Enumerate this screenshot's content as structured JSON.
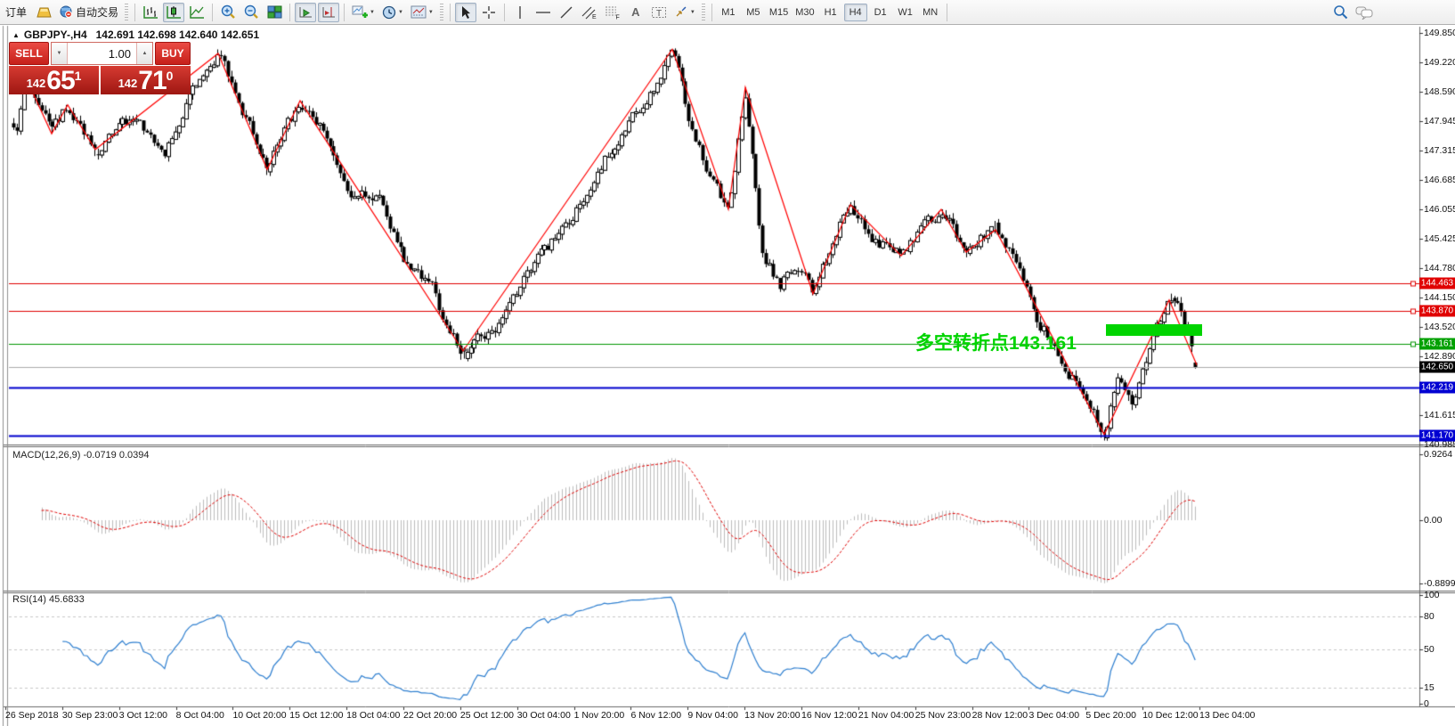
{
  "toolbar": {
    "order_label": "订单",
    "autotrade_label": "自动交易",
    "timeframes": [
      {
        "label": "M1",
        "active": false
      },
      {
        "label": "M5",
        "active": false
      },
      {
        "label": "M15",
        "active": false
      },
      {
        "label": "M30",
        "active": false
      },
      {
        "label": "H1",
        "active": false
      },
      {
        "label": "H4",
        "active": true
      },
      {
        "label": "D1",
        "active": false
      },
      {
        "label": "W1",
        "active": false
      },
      {
        "label": "MN",
        "active": false
      }
    ],
    "fibo_tag": "F",
    "channel_tag": "E",
    "text_tool": "A",
    "label_tool": "T"
  },
  "quote_panel": {
    "title_symbol": "GBPJPY-,H4",
    "title_ohlc": "142.691 142.698 142.640 142.651",
    "sell_label": "SELL",
    "buy_label": "BUY",
    "volume": "1.00",
    "sell_price_big": "142",
    "sell_price_main": "65",
    "sell_price_sup": "1",
    "buy_price_big": "142",
    "buy_price_main": "71",
    "buy_price_sup": "0"
  },
  "chart_data": {
    "type": "candlestick",
    "symbol": "GBPJPY-",
    "timeframe": "H4",
    "quote": {
      "open": 142.691,
      "high": 142.698,
      "low": 142.64,
      "close": 142.651
    },
    "price_axis": {
      "ticks": [
        149.85,
        149.22,
        148.59,
        147.945,
        147.315,
        146.685,
        146.055,
        145.425,
        144.78,
        144.15,
        143.52,
        142.89,
        141.615,
        140.985
      ]
    },
    "levels": [
      {
        "price": 144.463,
        "label": "144.463",
        "line_color": "#e00000",
        "width": 1,
        "badge_bg": "#e00000",
        "handle": true
      },
      {
        "price": 143.87,
        "label": "143.870",
        "line_color": "#e00000",
        "width": 1,
        "badge_bg": "#e00000",
        "handle": true
      },
      {
        "price": 143.161,
        "label": "143.161",
        "line_color": "#009600",
        "width": 1,
        "badge_bg": "#00a000",
        "handle": true
      },
      {
        "price": 142.65,
        "label": "142.650",
        "line_color": "#ababab",
        "width": 1,
        "badge_bg": "#000000",
        "handle": false
      },
      {
        "price": 142.219,
        "label": "142.219",
        "line_color": "#0000cd",
        "width": 2,
        "badge_bg": "#0000d2",
        "handle": false
      },
      {
        "price": 141.17,
        "label": "141.170",
        "line_color": "#0000cd",
        "width": 2,
        "badge_bg": "#0000d2",
        "handle": false
      }
    ],
    "time_labels": [
      "26 Sep 2018",
      "30 Sep 23:00",
      "3 Oct 12:00",
      "8 Oct 04:00",
      "10 Oct 20:00",
      "15 Oct 12:00",
      "18 Oct 04:00",
      "22 Oct 20:00",
      "25 Oct 12:00",
      "30 Oct 04:00",
      "1 Nov 20:00",
      "6 Nov 12:00",
      "9 Nov 04:00",
      "13 Nov 20:00",
      "16 Nov 12:00",
      "21 Nov 04:00",
      "25 Nov 23:00",
      "28 Nov 12:00",
      "3 Dec 04:00",
      "5 Dec 20:00",
      "10 Dec 12:00",
      "13 Dec 04:00"
    ],
    "zigzag_pivots": [
      [
        30,
        148.85
      ],
      [
        58,
        147.68
      ],
      [
        76,
        148.3
      ],
      [
        107,
        147.34
      ],
      [
        245,
        149.41
      ],
      [
        300,
        146.91
      ],
      [
        337,
        148.39
      ],
      [
        520,
        143.0
      ],
      [
        755,
        149.5
      ],
      [
        818,
        146.05
      ],
      [
        837,
        148.68
      ],
      [
        913,
        144.23
      ],
      [
        955,
        146.15
      ],
      [
        1012,
        145.05
      ],
      [
        1057,
        146.05
      ],
      [
        1085,
        145.13
      ],
      [
        1118,
        145.61
      ],
      [
        1240,
        141.2
      ],
      [
        1313,
        144.1
      ],
      [
        1344,
        142.7
      ]
    ],
    "path_anchors": [
      [
        20,
        147.9
      ],
      [
        30,
        148.85
      ],
      [
        58,
        147.68
      ],
      [
        76,
        148.3
      ],
      [
        107,
        147.34
      ],
      [
        150,
        148.1
      ],
      [
        185,
        147.3
      ],
      [
        210,
        148.4
      ],
      [
        245,
        149.41
      ],
      [
        300,
        146.91
      ],
      [
        337,
        148.39
      ],
      [
        365,
        147.6
      ],
      [
        395,
        146.3
      ],
      [
        425,
        146.45
      ],
      [
        455,
        144.9
      ],
      [
        485,
        144.35
      ],
      [
        505,
        143.3
      ],
      [
        520,
        143.0
      ],
      [
        560,
        143.55
      ],
      [
        600,
        144.9
      ],
      [
        640,
        145.8
      ],
      [
        680,
        147.2
      ],
      [
        700,
        147.6
      ],
      [
        720,
        148.3
      ],
      [
        740,
        148.9
      ],
      [
        755,
        149.5
      ],
      [
        775,
        147.9
      ],
      [
        795,
        146.9
      ],
      [
        805,
        146.5
      ],
      [
        818,
        146.05
      ],
      [
        825,
        147.0
      ],
      [
        830,
        147.9
      ],
      [
        837,
        148.68
      ],
      [
        855,
        145.2
      ],
      [
        875,
        144.4
      ],
      [
        895,
        144.9
      ],
      [
        913,
        144.23
      ],
      [
        934,
        145.3
      ],
      [
        955,
        146.15
      ],
      [
        985,
        145.3
      ],
      [
        1012,
        145.05
      ],
      [
        1035,
        145.6
      ],
      [
        1057,
        146.05
      ],
      [
        1085,
        145.13
      ],
      [
        1100,
        145.4
      ],
      [
        1118,
        145.61
      ],
      [
        1150,
        144.5
      ],
      [
        1165,
        143.6
      ],
      [
        1180,
        143.3
      ],
      [
        1200,
        142.6
      ],
      [
        1220,
        141.9
      ],
      [
        1240,
        141.2
      ],
      [
        1255,
        142.35
      ],
      [
        1270,
        141.85
      ],
      [
        1285,
        142.6
      ],
      [
        1300,
        143.5
      ],
      [
        1313,
        144.1
      ],
      [
        1325,
        143.9
      ],
      [
        1335,
        143.3
      ],
      [
        1344,
        142.7
      ]
    ],
    "zigzag_color": "#ff0000",
    "candle_up_fill": "#ffffff",
    "candle_down_fill": "#000000",
    "candle_stroke": "#000000",
    "macd": {
      "label": "MACD(12,26,9)",
      "values": "-0.0719 0.0394",
      "fast": 12,
      "slow": 26,
      "signal": 9,
      "ticks": [
        {
          "v": 0.9264,
          "label": "0.9264"
        },
        {
          "v": 0,
          "label": "0.00"
        },
        {
          "v": -0.8899,
          "label": "-0.8899"
        }
      ],
      "histogram_color": "#bdbdbd",
      "signal_color": "#e00000"
    },
    "rsi": {
      "label": "RSI(14)",
      "value": "45.6833",
      "period": 14,
      "axis_levels": [
        100,
        80,
        50,
        15,
        0
      ],
      "dashed_levels": [
        80,
        50,
        15
      ],
      "line_color": "#2e7fd0",
      "level_color": "#c8c8c8"
    },
    "annotation": {
      "text": "多空转折点143.161",
      "color": "#00d400"
    },
    "highlight": {
      "color": "#00d400"
    }
  }
}
